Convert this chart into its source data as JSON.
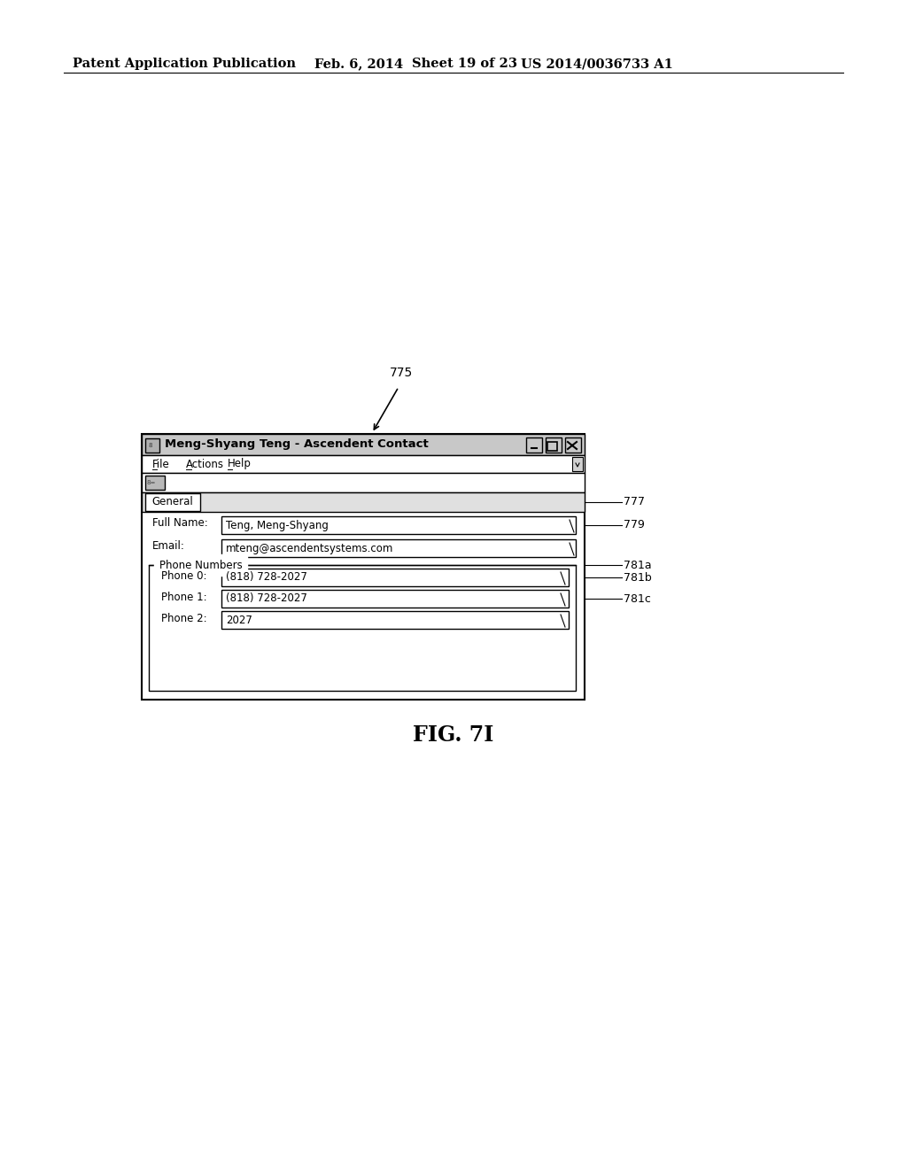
{
  "bg_color": "#ffffff",
  "header_text": "Patent Application Publication",
  "header_date": "Feb. 6, 2014",
  "header_sheet": "Sheet 19 of 23",
  "header_patent": "US 2014/0036733 A1",
  "fig_label": "FIG. 7I",
  "arrow_label": "775",
  "window_title": "Meng-Shyang Teng - Ascendent Contact",
  "menu_items": [
    "File",
    "Actions",
    "Help"
  ],
  "tab_label": "General",
  "fields": [
    {
      "label": "Full Name:",
      "value": "Teng, Meng-Shyang"
    },
    {
      "label": "Email:",
      "value": "mteng@ascendentsystems.com"
    }
  ],
  "phone_group_label": "Phone Numbers",
  "phone_fields": [
    {
      "label": "Phone 0:",
      "value": "(818) 728-2027"
    },
    {
      "label": "Phone 1:",
      "value": "(818) 728-2027"
    },
    {
      "label": "Phone 2:",
      "value": "2027"
    }
  ]
}
